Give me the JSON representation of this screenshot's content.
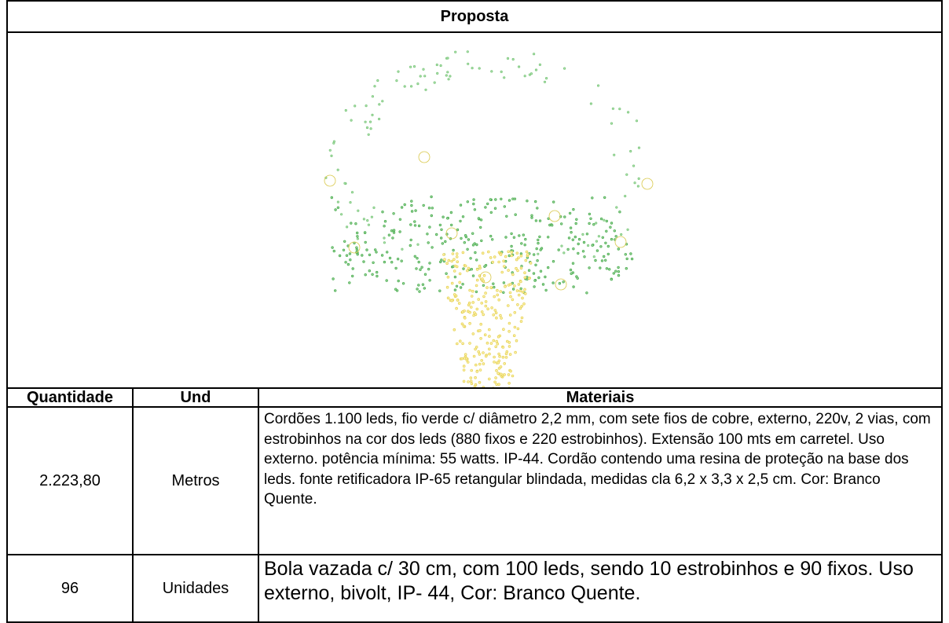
{
  "table": {
    "title": "Proposta",
    "headers": [
      "Quantidade",
      "Und",
      "Materiais"
    ],
    "rows": [
      [
        "2.223,80",
        "Metros",
        "Cordões 1.100 leds, fio verde c/ diâmetro 2,2 mm, com sete fios de cobre, externo, 220v, 2 vias, com estrobinhos na cor dos leds (880 fixos e 220 estrobinhos). Extensão 100 mts em carretel. Uso externo. potência mínima: 55 watts. IP-44. Cordão contendo uma resina de proteção na base dos leds. fonte retificadora IP-65 retangular blindada, medidas cla 6,2 x 3,3 x 2,5 cm. Cor: Branco Quente."
      ],
      [
        "96",
        "Unidades",
        "Bola vazada c/ 30 cm, com 100 leds, sendo 10 estrobinhos e 90 fixos. Uso externo, bivolt, IP- 44, Cor: Branco Quente."
      ]
    ]
  }
}
